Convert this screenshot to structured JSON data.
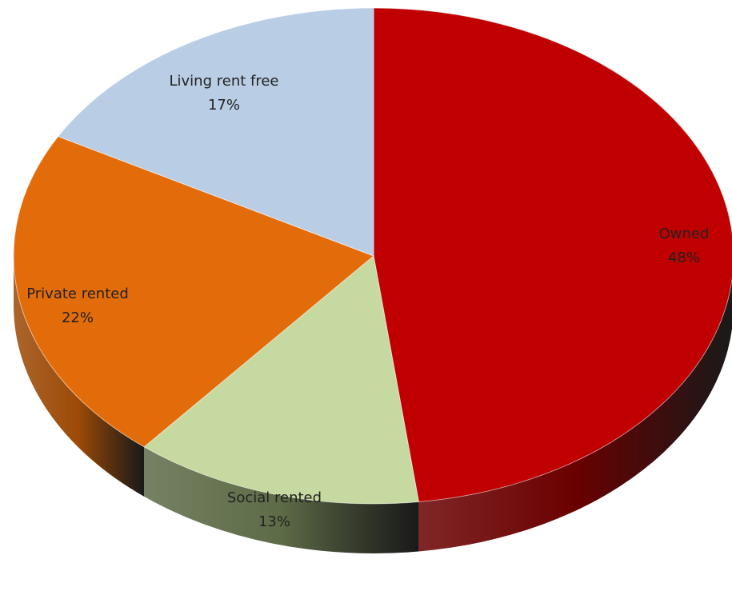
{
  "chart_data": {
    "type": "pie",
    "title": "",
    "style": "3d",
    "slices": [
      {
        "label": "Owned",
        "pct_text": "48%",
        "value": 48,
        "color": "#C00000",
        "side_color": "#6A0000"
      },
      {
        "label": "Social rented",
        "pct_text": "13%",
        "value": 13,
        "color": "#C5D9A0",
        "side_color": "#5D6B47"
      },
      {
        "label": "Private rented",
        "pct_text": "22%",
        "value": 22,
        "color": "#E36C0A",
        "side_color": "#9C4A06"
      },
      {
        "label": "Living rent free",
        "pct_text": "17%",
        "value": 17,
        "color": "#B9CDE5",
        "side_color": "#7E8FA6"
      }
    ]
  }
}
